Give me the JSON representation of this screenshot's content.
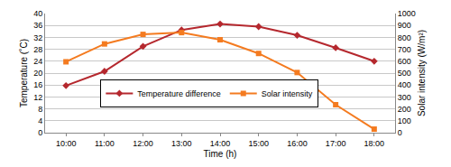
{
  "chart_data": {
    "type": "line",
    "x_label": "Time (h)",
    "y_label": "Temperature (˚C)",
    "y2_label": "Solar intensity (W/m²)",
    "categories": [
      "10:00",
      "11:00",
      "12:00",
      "13:00",
      "14:00",
      "15:00",
      "16:00",
      "17:00",
      "18:00"
    ],
    "series": [
      {
        "name": "Temperature difference",
        "color": "#b5282e",
        "marker": "diamond",
        "values": [
          15.8,
          20.6,
          29,
          34.5,
          36.5,
          35.6,
          32.7,
          28.5,
          24
        ]
      },
      {
        "name": "Solar intensity",
        "color": "#f47b20",
        "marker": "square",
        "axis": "y2",
        "values": [
          595,
          745,
          825,
          840,
          780,
          665,
          505,
          235,
          30
        ]
      }
    ],
    "ylim": [
      0,
      40
    ],
    "yticks": [
      0,
      4,
      8,
      12,
      16,
      20,
      24,
      28,
      32,
      36,
      40
    ],
    "y2lim": [
      0,
      1000
    ],
    "y2ticks": [
      0,
      100,
      200,
      300,
      400,
      500,
      600,
      700,
      800,
      900,
      1000
    ],
    "grid": true,
    "legend": "center"
  }
}
